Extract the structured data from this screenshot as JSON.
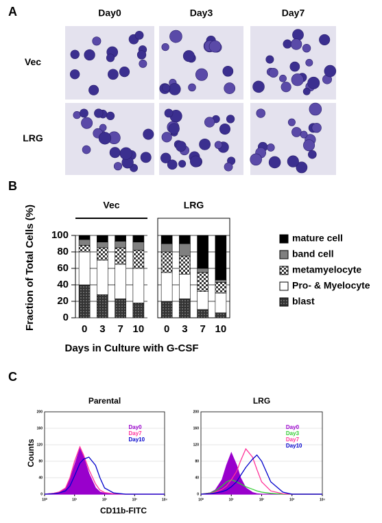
{
  "panel_labels": [
    "A",
    "B",
    "C"
  ],
  "micrographs": {
    "columns": [
      "Day0",
      "Day3",
      "Day7"
    ],
    "rows": [
      "Vec",
      "LRG"
    ]
  },
  "chart_data": [
    {
      "type": "stacked_bar",
      "ylabel": "Fraction of Total Cells (%)",
      "xlabel": "Days in Culture with G-CSF",
      "facets": [
        "Vec",
        "LRG"
      ],
      "categories": [
        "0",
        "3",
        "7",
        "10"
      ],
      "ylim": [
        0,
        100
      ],
      "yticks": [
        0,
        20,
        40,
        60,
        80,
        100
      ],
      "grid": true,
      "series": [
        {
          "name": "blast",
          "color": "#333333",
          "pattern": "dots",
          "values": [
            [
              40,
              28,
              23,
              18
            ],
            [
              20,
              23,
              10,
              6
            ]
          ]
        },
        {
          "name": "Pro- & Myelocyte",
          "color": "#ffffff",
          "values": [
            [
              40,
              42,
              42,
              42
            ],
            [
              35,
              30,
              22,
              24
            ]
          ]
        },
        {
          "name": "metamyelocyte",
          "color": "#ffffff",
          "pattern": "checker",
          "values": [
            [
              8,
              15,
              20,
              22
            ],
            [
              25,
              22,
              23,
              13
            ]
          ]
        },
        {
          "name": "band cell",
          "color": "#808080",
          "values": [
            [
              7,
              7,
              8,
              10
            ],
            [
              10,
              15,
              5,
              3
            ]
          ]
        },
        {
          "name": "mature cell",
          "color": "#000000",
          "values": [
            [
              5,
              8,
              7,
              8
            ],
            [
              10,
              10,
              40,
              54
            ]
          ]
        }
      ]
    },
    {
      "type": "histogram_line",
      "title": "Parental",
      "ylabel": "Counts",
      "xlabel": "CD11b-FITC",
      "log_x": true,
      "xlim": [
        1,
        10000
      ],
      "xticks": [
        {
          "value": 1,
          "label": "10⁰"
        },
        {
          "value": 10,
          "label": "10¹"
        },
        {
          "value": 100,
          "label": "10²"
        },
        {
          "value": 1000,
          "label": "10³"
        },
        {
          "value": 10000,
          "label": "10⁴"
        }
      ],
      "ylim": [
        0,
        200
      ],
      "yticks": [
        0,
        40,
        80,
        120,
        160,
        200
      ],
      "grid": true,
      "x": [
        1,
        2,
        3,
        5,
        7,
        10,
        15,
        20,
        30,
        50,
        70,
        100,
        200,
        500,
        1000,
        10000
      ],
      "series": [
        {
          "name": "Day0",
          "color": "#9900cc",
          "fill": true,
          "values": [
            0,
            2,
            5,
            15,
            35,
            70,
            110,
            90,
            50,
            15,
            5,
            2,
            0,
            0,
            0,
            0
          ]
        },
        {
          "name": "Day7",
          "color": "#ff3399",
          "values": [
            0,
            2,
            5,
            15,
            40,
            80,
            115,
            95,
            60,
            25,
            10,
            4,
            1,
            0,
            0,
            0
          ]
        },
        {
          "name": "Day10",
          "color": "#0000cc",
          "values": [
            0,
            1,
            3,
            8,
            20,
            45,
            75,
            85,
            90,
            70,
            40,
            15,
            3,
            0,
            0,
            0
          ]
        }
      ]
    },
    {
      "type": "histogram_line",
      "title": "LRG",
      "log_x": true,
      "xlim": [
        1,
        10000
      ],
      "xticks": [
        {
          "value": 1,
          "label": "10⁰"
        },
        {
          "value": 10,
          "label": "10¹"
        },
        {
          "value": 100,
          "label": "10²"
        },
        {
          "value": 1000,
          "label": "10³"
        },
        {
          "value": 10000,
          "label": "10⁴"
        }
      ],
      "ylim": [
        0,
        200
      ],
      "yticks": [
        0,
        40,
        80,
        120,
        160,
        200
      ],
      "grid": true,
      "x": [
        1,
        2,
        3,
        5,
        7,
        10,
        15,
        20,
        30,
        50,
        70,
        100,
        200,
        500,
        1000,
        10000
      ],
      "series": [
        {
          "name": "Day0",
          "color": "#9900cc",
          "fill": true,
          "values": [
            0,
            3,
            10,
            35,
            70,
            100,
            70,
            40,
            15,
            4,
            1,
            0,
            0,
            0,
            0,
            0
          ]
        },
        {
          "name": "Day3",
          "color": "#33cc33",
          "values": [
            0,
            3,
            8,
            20,
            30,
            35,
            30,
            25,
            18,
            12,
            8,
            5,
            2,
            0,
            0,
            0
          ]
        },
        {
          "name": "Day7",
          "color": "#ff3399",
          "values": [
            0,
            2,
            5,
            12,
            20,
            35,
            55,
            80,
            110,
            90,
            60,
            30,
            8,
            1,
            0,
            0
          ]
        },
        {
          "name": "Day10",
          "color": "#0000cc",
          "values": [
            0,
            1,
            3,
            6,
            10,
            18,
            30,
            45,
            65,
            85,
            95,
            80,
            30,
            5,
            0,
            0
          ]
        }
      ]
    }
  ]
}
